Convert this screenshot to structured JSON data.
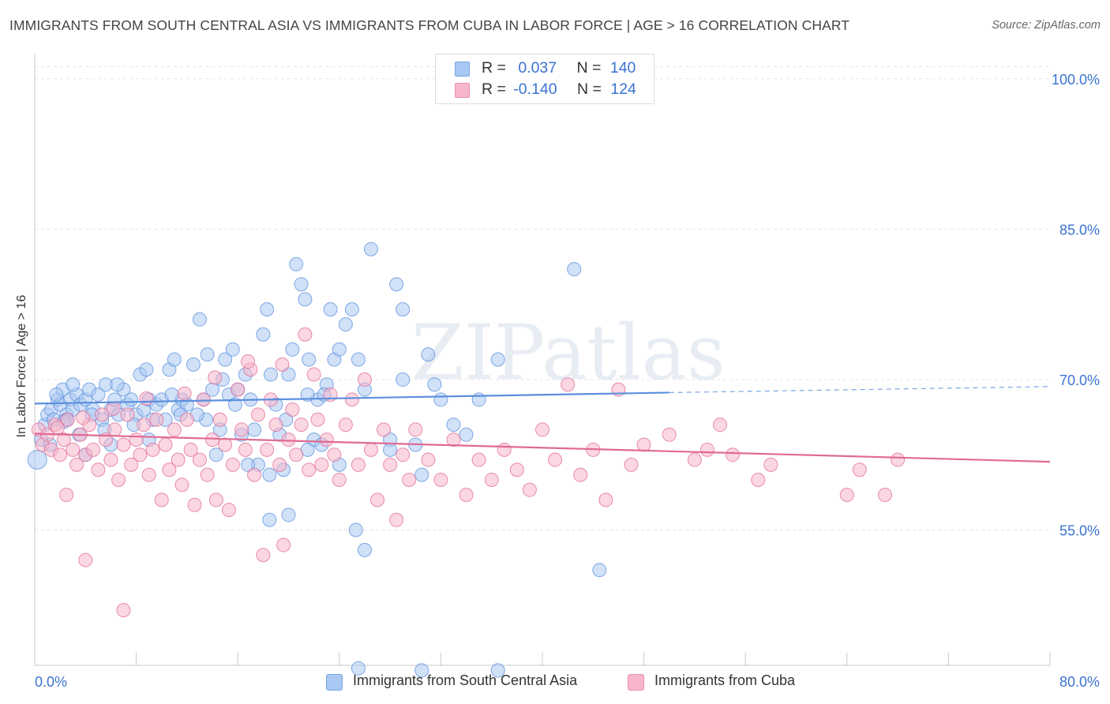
{
  "title": "IMMIGRANTS FROM SOUTH CENTRAL ASIA VS IMMIGRANTS FROM CUBA IN LABOR FORCE | AGE > 16 CORRELATION CHART",
  "source": "Source: ZipAtlas.com",
  "watermark": "ZIPatlas",
  "legend": {
    "rows": [
      {
        "r_label": "R =",
        "r_value": "0.037",
        "n_label": "N =",
        "n_value": "140",
        "color": "#a9c8f3"
      },
      {
        "r_label": "R =",
        "r_value": "-0.140",
        "n_label": "N =",
        "n_value": "124",
        "color": "#f7b6cb"
      }
    ]
  },
  "chart_data": {
    "type": "scatter",
    "title": "IMMIGRANTS FROM SOUTH CENTRAL ASIA VS IMMIGRANTS FROM CUBA IN LABOR FORCE | AGE > 16 CORRELATION CHART",
    "xlabel": "",
    "ylabel": "In Labor Force | Age > 16",
    "xlim": [
      0,
      80
    ],
    "ylim": [
      41.5,
      102.5
    ],
    "x_tick_labels": [
      "0.0%",
      "80.0%"
    ],
    "y_ticks": [
      55,
      70,
      85,
      100
    ],
    "y_tick_labels": [
      "55.0%",
      "70.0%",
      "85.0%",
      "100.0%"
    ],
    "grid": true,
    "legend_placement": "top-center",
    "series": [
      {
        "name": "Immigrants from South Central Asia",
        "color": "#5b8fdc",
        "fill": "#a9c8f3",
        "trend": {
          "x": [
            0,
            50
          ],
          "y": [
            67.6,
            68.7
          ],
          "dashed_to": [
            80,
            69.3
          ]
        },
        "points": [
          [
            0.2,
            62
          ],
          [
            0.5,
            64
          ],
          [
            0.8,
            65.5
          ],
          [
            1,
            66.5
          ],
          [
            1.3,
            67
          ],
          [
            1.5,
            66
          ],
          [
            1.8,
            68
          ],
          [
            2,
            67.5
          ],
          [
            2.2,
            69
          ],
          [
            2.5,
            66.5
          ],
          [
            2.8,
            68
          ],
          [
            3,
            67
          ],
          [
            3.3,
            68.5
          ],
          [
            3.6,
            67.5
          ],
          [
            4,
            68
          ],
          [
            4.3,
            69
          ],
          [
            4.6,
            67
          ],
          [
            5,
            68.5
          ],
          [
            5.3,
            66
          ],
          [
            5.6,
            69.5
          ],
          [
            6,
            67
          ],
          [
            6.3,
            68
          ],
          [
            6.6,
            66.5
          ],
          [
            7,
            69
          ],
          [
            7.3,
            67.5
          ],
          [
            7.6,
            68
          ],
          [
            8,
            66.5
          ],
          [
            8.3,
            70.5
          ],
          [
            8.6,
            67
          ],
          [
            9,
            68
          ],
          [
            9.3,
            66
          ],
          [
            9.6,
            67.5
          ],
          [
            10,
            68
          ],
          [
            10.3,
            66
          ],
          [
            10.6,
            71
          ],
          [
            11,
            72
          ],
          [
            11.3,
            67
          ],
          [
            11.6,
            68
          ],
          [
            12,
            67.5
          ],
          [
            12.5,
            71.5
          ],
          [
            13,
            76
          ],
          [
            13.3,
            68
          ],
          [
            13.6,
            72.5
          ],
          [
            14,
            69
          ],
          [
            14.3,
            62.5
          ],
          [
            14.6,
            65
          ],
          [
            15,
            72
          ],
          [
            15.3,
            68.5
          ],
          [
            15.6,
            73
          ],
          [
            16,
            69
          ],
          [
            16.3,
            64.5
          ],
          [
            16.6,
            70.5
          ],
          [
            17,
            68
          ],
          [
            17.3,
            65
          ],
          [
            17.6,
            61.5
          ],
          [
            18,
            74.5
          ],
          [
            18.3,
            77
          ],
          [
            18.6,
            70.5
          ],
          [
            19,
            67.5
          ],
          [
            19.3,
            64.5
          ],
          [
            19.6,
            61
          ],
          [
            20,
            70.5
          ],
          [
            20.3,
            73
          ],
          [
            20.6,
            81.5
          ],
          [
            21,
            79.5
          ],
          [
            21.3,
            78
          ],
          [
            21.6,
            72
          ],
          [
            22,
            64
          ],
          [
            22.3,
            68
          ],
          [
            22.6,
            63.5
          ],
          [
            23,
            69.5
          ],
          [
            23.3,
            77
          ],
          [
            23.6,
            72
          ],
          [
            24,
            61.5
          ],
          [
            24.5,
            75.5
          ],
          [
            25,
            77
          ],
          [
            25.5,
            72
          ],
          [
            26,
            69
          ],
          [
            26.5,
            83
          ],
          [
            28,
            64
          ],
          [
            28.5,
            79.5
          ],
          [
            29,
            77
          ],
          [
            30,
            63.5
          ],
          [
            31,
            72.5
          ],
          [
            32,
            68
          ],
          [
            33,
            65.5
          ],
          [
            34,
            64.5
          ],
          [
            35,
            68
          ],
          [
            42.5,
            81
          ],
          [
            44.5,
            51
          ],
          [
            29,
            70
          ],
          [
            21.5,
            68.5
          ],
          [
            28,
            63
          ],
          [
            36.5,
            72
          ],
          [
            31.5,
            69.5
          ],
          [
            18.5,
            56
          ],
          [
            25.3,
            55
          ],
          [
            26,
            53
          ],
          [
            21.5,
            63
          ],
          [
            13.5,
            66
          ],
          [
            9,
            64
          ],
          [
            4.5,
            66.5
          ],
          [
            2.5,
            66
          ],
          [
            1.2,
            63.5
          ],
          [
            6.5,
            69.5
          ],
          [
            3.5,
            64.5
          ],
          [
            11.5,
            66.5
          ],
          [
            14.8,
            70
          ],
          [
            15.8,
            67.5
          ],
          [
            16.8,
            61.5
          ],
          [
            19.8,
            66
          ],
          [
            22.8,
            68.5
          ],
          [
            24,
            73
          ],
          [
            20,
            56.5
          ],
          [
            18.5,
            60.5
          ],
          [
            30.5,
            60.5
          ],
          [
            25.5,
            41.2
          ],
          [
            36.5,
            41
          ],
          [
            30.5,
            41
          ],
          [
            5.5,
            65
          ],
          [
            7.8,
            65.5
          ],
          [
            8.8,
            71
          ],
          [
            12.8,
            66.5
          ],
          [
            10.8,
            68.5
          ],
          [
            3,
            69.5
          ],
          [
            4,
            62.5
          ],
          [
            6,
            63.5
          ],
          [
            1.7,
            68.5
          ],
          [
            2.3,
            65.8
          ]
        ]
      },
      {
        "name": "Immigrants from Cuba",
        "color": "#e06a94",
        "fill": "#f7b6cb",
        "trend": {
          "x": [
            0,
            80
          ],
          "y": [
            64.6,
            61.8
          ]
        },
        "points": [
          [
            0.3,
            65
          ],
          [
            0.6,
            63.5
          ],
          [
            1,
            64.5
          ],
          [
            1.3,
            63
          ],
          [
            1.6,
            65.5
          ],
          [
            2,
            62.5
          ],
          [
            2.3,
            64
          ],
          [
            2.6,
            66
          ],
          [
            3,
            63
          ],
          [
            3.3,
            61.5
          ],
          [
            3.6,
            64.5
          ],
          [
            4,
            62.5
          ],
          [
            4.3,
            65.5
          ],
          [
            4.6,
            63
          ],
          [
            5,
            61
          ],
          [
            5.3,
            66.5
          ],
          [
            5.6,
            64
          ],
          [
            6,
            62
          ],
          [
            6.3,
            65
          ],
          [
            6.6,
            60
          ],
          [
            7,
            63.5
          ],
          [
            7.3,
            66.5
          ],
          [
            7.6,
            61.5
          ],
          [
            8,
            64
          ],
          [
            8.3,
            62.5
          ],
          [
            8.6,
            65.5
          ],
          [
            9,
            60.5
          ],
          [
            9.3,
            63
          ],
          [
            9.6,
            66
          ],
          [
            10,
            58
          ],
          [
            10.3,
            63.5
          ],
          [
            10.6,
            61
          ],
          [
            11,
            65
          ],
          [
            11.3,
            62
          ],
          [
            11.6,
            59.5
          ],
          [
            12,
            66
          ],
          [
            12.3,
            63
          ],
          [
            12.6,
            57.5
          ],
          [
            13,
            62
          ],
          [
            13.3,
            68
          ],
          [
            13.6,
            60.5
          ],
          [
            14,
            64
          ],
          [
            14.3,
            58
          ],
          [
            14.6,
            66
          ],
          [
            15,
            63.5
          ],
          [
            15.3,
            57
          ],
          [
            15.6,
            61.5
          ],
          [
            16,
            69
          ],
          [
            16.3,
            65
          ],
          [
            16.6,
            63
          ],
          [
            17,
            71
          ],
          [
            17.3,
            60.5
          ],
          [
            17.6,
            66.5
          ],
          [
            18,
            52.5
          ],
          [
            18.3,
            63
          ],
          [
            18.6,
            68
          ],
          [
            19,
            65.5
          ],
          [
            19.3,
            61.5
          ],
          [
            19.6,
            53.5
          ],
          [
            20,
            64
          ],
          [
            20.3,
            67
          ],
          [
            20.6,
            62.5
          ],
          [
            21,
            65.5
          ],
          [
            21.3,
            74.5
          ],
          [
            21.6,
            61
          ],
          [
            22,
            70.5
          ],
          [
            22.3,
            66
          ],
          [
            22.6,
            61.5
          ],
          [
            23,
            64
          ],
          [
            23.3,
            68.5
          ],
          [
            23.6,
            62.5
          ],
          [
            24,
            60
          ],
          [
            24.5,
            65.5
          ],
          [
            25,
            68
          ],
          [
            25.5,
            61.5
          ],
          [
            26,
            70
          ],
          [
            26.5,
            63
          ],
          [
            27,
            58
          ],
          [
            27.5,
            65
          ],
          [
            28,
            61.5
          ],
          [
            28.5,
            56
          ],
          [
            29,
            62.5
          ],
          [
            29.5,
            60
          ],
          [
            30,
            65
          ],
          [
            31,
            62
          ],
          [
            32,
            60
          ],
          [
            33,
            64
          ],
          [
            34,
            58.5
          ],
          [
            35,
            62
          ],
          [
            36,
            60
          ],
          [
            37,
            63
          ],
          [
            38,
            61
          ],
          [
            39,
            59
          ],
          [
            40,
            65
          ],
          [
            41,
            62
          ],
          [
            42,
            69.5
          ],
          [
            43,
            60.5
          ],
          [
            44,
            63
          ],
          [
            45,
            58
          ],
          [
            46,
            69
          ],
          [
            47,
            61.5
          ],
          [
            48,
            63.5
          ],
          [
            50,
            64.5
          ],
          [
            52,
            62
          ],
          [
            53,
            63
          ],
          [
            54,
            65.5
          ],
          [
            55,
            62.5
          ],
          [
            57,
            60
          ],
          [
            58,
            61.5
          ],
          [
            64,
            58.5
          ],
          [
            65,
            61
          ],
          [
            67,
            58.5
          ],
          [
            68,
            62
          ],
          [
            2.5,
            58.5
          ],
          [
            4,
            52
          ],
          [
            7,
            47
          ],
          [
            1.8,
            65.2
          ],
          [
            3.8,
            66.2
          ],
          [
            6.2,
            67.1
          ],
          [
            8.8,
            68.1
          ],
          [
            11.8,
            68.6
          ],
          [
            14.2,
            70.2
          ],
          [
            16.8,
            71.8
          ],
          [
            19.5,
            71.5
          ]
        ]
      }
    ]
  },
  "bottom_legend": [
    {
      "label": "Immigrants from South Central Asia",
      "color": "#a9c8f3"
    },
    {
      "label": "Immigrants from Cuba",
      "color": "#f7b6cb"
    }
  ]
}
